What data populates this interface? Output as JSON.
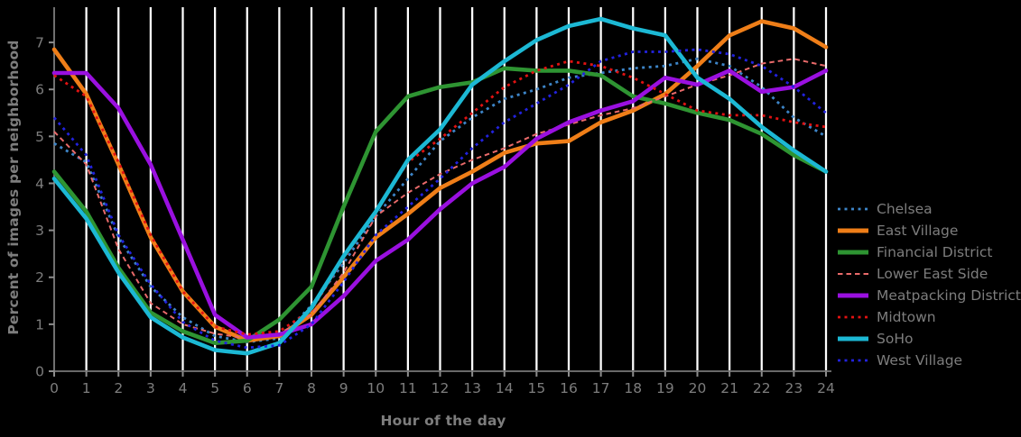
{
  "figure": {
    "background": "#000000",
    "text_color": "#7d7d7d",
    "grid_color": "#ffffff",
    "axis_color": "#8c8c8c"
  },
  "chart_data": {
    "type": "line",
    "title": "",
    "xlabel": "Hour of the day",
    "ylabel": "Percent of images per neighborhood",
    "xlim": [
      0,
      24
    ],
    "ylim": [
      0,
      7.75
    ],
    "xticks": [
      0,
      1,
      2,
      3,
      4,
      5,
      6,
      7,
      8,
      9,
      10,
      11,
      12,
      13,
      14,
      15,
      16,
      17,
      18,
      19,
      20,
      21,
      22,
      23,
      24
    ],
    "yticks": [
      0,
      1,
      2,
      3,
      4,
      5,
      6,
      7
    ],
    "grid": "vertical-only, white lines at every hour",
    "legend_position": "right",
    "x": [
      0,
      1,
      2,
      3,
      4,
      5,
      6,
      7,
      8,
      9,
      10,
      11,
      12,
      13,
      14,
      15,
      16,
      17,
      18,
      19,
      20,
      21,
      22,
      23,
      24
    ],
    "series": [
      {
        "name": "Chelsea",
        "color": "#3d85c8",
        "style": "dotted",
        "width": 2.8,
        "values": [
          4.85,
          4.45,
          2.85,
          1.8,
          1.15,
          0.75,
          0.62,
          0.7,
          1.4,
          2.3,
          3.3,
          4.1,
          4.9,
          5.4,
          5.8,
          6.0,
          6.25,
          6.35,
          6.45,
          6.5,
          6.65,
          6.5,
          6.05,
          5.4,
          5.0
        ]
      },
      {
        "name": "East Village",
        "color": "#ef7e18",
        "style": "solid",
        "width": 4.6,
        "values": [
          6.85,
          5.9,
          4.4,
          2.85,
          1.7,
          0.95,
          0.65,
          0.75,
          1.2,
          2.0,
          2.85,
          3.35,
          3.9,
          4.25,
          4.65,
          4.85,
          4.9,
          5.3,
          5.55,
          5.9,
          6.5,
          7.15,
          7.45,
          7.3,
          6.9
        ]
      },
      {
        "name": "Financial District",
        "color": "#2e9432",
        "style": "solid",
        "width": 4.6,
        "values": [
          4.25,
          3.4,
          2.2,
          1.25,
          0.85,
          0.6,
          0.65,
          1.1,
          1.8,
          3.5,
          5.1,
          5.85,
          6.05,
          6.15,
          6.45,
          6.4,
          6.4,
          6.3,
          5.85,
          5.7,
          5.5,
          5.35,
          5.05,
          4.6,
          4.25
        ]
      },
      {
        "name": "Lower East Side",
        "color": "#e96a6a",
        "style": "dashed",
        "width": 2.0,
        "values": [
          5.1,
          4.4,
          2.6,
          1.45,
          1.0,
          0.8,
          0.7,
          0.8,
          1.2,
          2.1,
          3.3,
          3.8,
          4.2,
          4.5,
          4.75,
          5.05,
          5.25,
          5.45,
          5.6,
          5.85,
          6.1,
          6.3,
          6.55,
          6.65,
          6.5
        ]
      },
      {
        "name": "Meatpacking District",
        "color": "#9a10e0",
        "style": "solid",
        "width": 4.6,
        "values": [
          6.35,
          6.35,
          5.6,
          4.4,
          2.8,
          1.2,
          0.72,
          0.78,
          1.0,
          1.6,
          2.35,
          2.8,
          3.45,
          4.0,
          4.35,
          4.95,
          5.3,
          5.55,
          5.75,
          6.25,
          6.1,
          6.4,
          5.95,
          6.05,
          6.4
        ]
      },
      {
        "name": "Midtown",
        "color": "#e11212",
        "style": "dotted",
        "width": 2.8,
        "values": [
          6.3,
          5.85,
          4.45,
          2.9,
          1.7,
          0.95,
          0.78,
          0.85,
          1.3,
          2.4,
          3.4,
          4.45,
          4.95,
          5.5,
          6.05,
          6.4,
          6.6,
          6.5,
          6.25,
          5.9,
          5.55,
          5.45,
          5.45,
          5.3,
          5.2
        ]
      },
      {
        "name": "SoHo",
        "color": "#1cb8d4",
        "style": "solid",
        "width": 4.6,
        "values": [
          4.1,
          3.25,
          2.1,
          1.15,
          0.72,
          0.45,
          0.38,
          0.6,
          1.35,
          2.45,
          3.4,
          4.5,
          5.15,
          6.1,
          6.6,
          7.05,
          7.35,
          7.5,
          7.3,
          7.15,
          6.25,
          5.8,
          5.2,
          4.7,
          4.25
        ]
      },
      {
        "name": "West Village",
        "color": "#2222dd",
        "style": "dotted",
        "width": 2.8,
        "values": [
          5.4,
          4.6,
          2.9,
          1.85,
          1.05,
          0.65,
          0.5,
          0.55,
          1.0,
          1.9,
          2.9,
          3.5,
          4.1,
          4.75,
          5.3,
          5.7,
          6.1,
          6.6,
          6.8,
          6.8,
          6.85,
          6.75,
          6.5,
          6.05,
          5.5
        ]
      }
    ]
  }
}
